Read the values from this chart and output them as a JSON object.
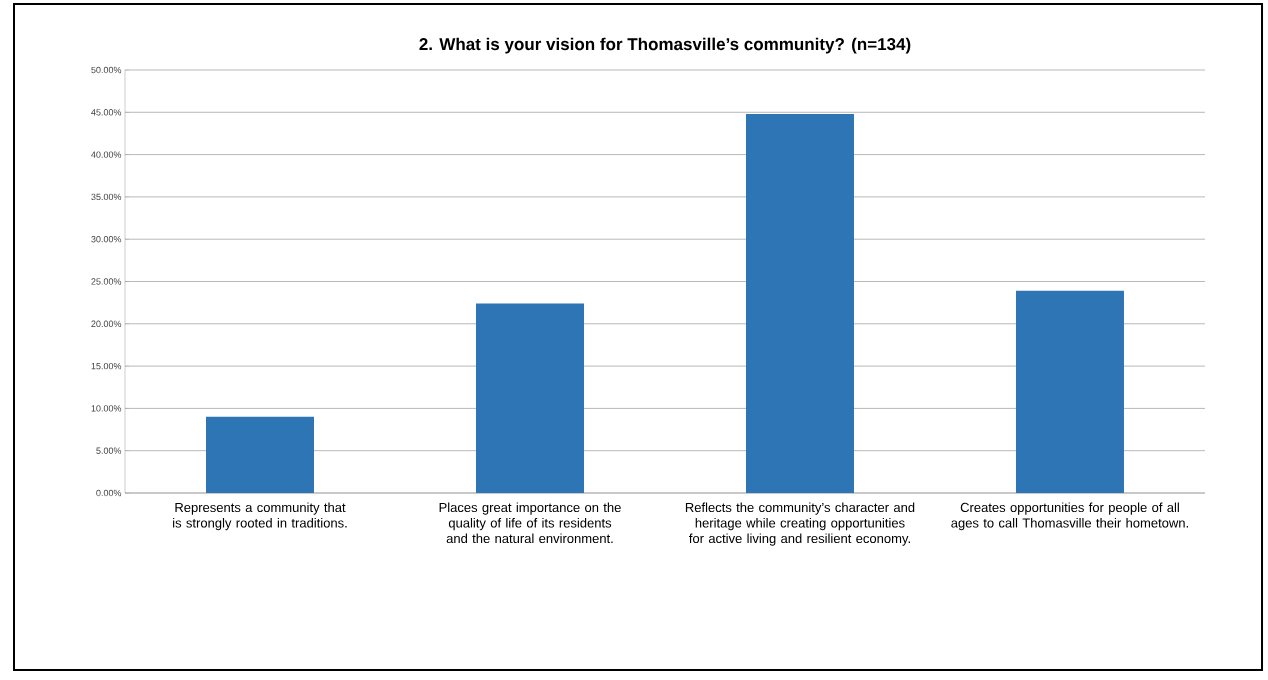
{
  "chart_data": {
    "type": "bar",
    "title": "2. What is your vision for Thomasville’s community? (n=134)",
    "categories": [
      "Represents a community that is strongly rooted in traditions.",
      "Places great importance on the quality of life of its residents and the natural environment.",
      "Reflects the community’s character and heritage while creating opportunities for active living and resilient economy.",
      "Creates opportunities for people of all ages to call Thomasville their hometown."
    ],
    "values": [
      9.0,
      22.4,
      44.8,
      23.9
    ],
    "color": "#2e75b6",
    "ylim": [
      0,
      50
    ],
    "yticks": [
      {
        "value": 0,
        "label": "0.00%"
      },
      {
        "value": 5,
        "label": "5.00%"
      },
      {
        "value": 10,
        "label": "10.00%"
      },
      {
        "value": 15,
        "label": "15.00%"
      },
      {
        "value": 20,
        "label": "20.00%"
      },
      {
        "value": 25,
        "label": "25.00%"
      },
      {
        "value": 30,
        "label": "30.00%"
      },
      {
        "value": 35,
        "label": "35.00%"
      },
      {
        "value": 40,
        "label": "40.00%"
      },
      {
        "value": 45,
        "label": "45.00%"
      },
      {
        "value": 50,
        "label": "50.00%"
      }
    ],
    "grid": "y"
  }
}
